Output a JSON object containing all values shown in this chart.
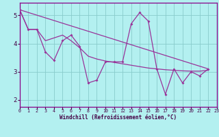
{
  "xlabel": "Windchill (Refroidissement éolien,°C)",
  "line_color": "#993399",
  "bg_color": "#b3f0f0",
  "grid_color": "#88cccc",
  "xlim": [
    0,
    23
  ],
  "ylim": [
    1.75,
    5.45
  ],
  "xticks": [
    0,
    1,
    2,
    3,
    4,
    5,
    6,
    7,
    8,
    9,
    10,
    11,
    12,
    13,
    14,
    15,
    16,
    17,
    18,
    19,
    20,
    21,
    22,
    23
  ],
  "yticks": [
    2,
    3,
    4,
    5
  ],
  "jagged_y": [
    5.2,
    4.5,
    4.5,
    3.7,
    3.4,
    4.1,
    4.3,
    3.9,
    2.6,
    2.7,
    3.35,
    3.35,
    3.35,
    4.7,
    5.1,
    4.8,
    3.1,
    2.2,
    3.1,
    2.6,
    3.0,
    2.85,
    3.1
  ],
  "smooth_y": [
    5.2,
    4.5,
    4.5,
    4.1,
    4.2,
    4.3,
    4.1,
    3.85,
    3.55,
    3.45,
    3.38,
    3.33,
    3.28,
    3.23,
    3.18,
    3.13,
    3.1,
    3.07,
    3.05,
    3.03,
    3.02,
    3.02,
    3.05
  ],
  "trend_y_start": 5.2,
  "trend_y_end": 3.1
}
